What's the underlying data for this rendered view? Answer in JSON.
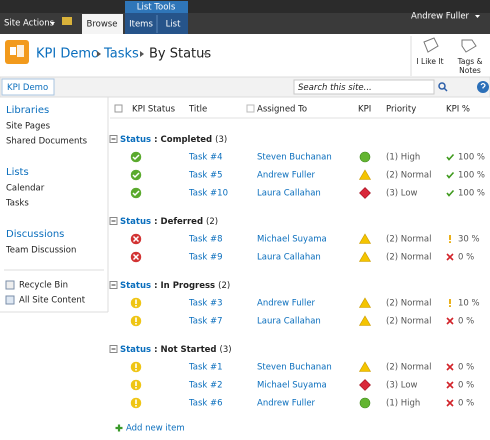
{
  "ribbon": {
    "site_actions": "Site Actions",
    "list_tools": "List Tools",
    "browse": "Browse",
    "items": "Items",
    "list": "List",
    "user": "Andrew Fuller"
  },
  "header": {
    "site": "KPI Demo",
    "list": "Tasks",
    "view": "By Status",
    "like": "I Like It",
    "tags_notes": [
      "Tags &",
      "Notes"
    ]
  },
  "nav_bar": {
    "breadcrumb": "KPI Demo",
    "search_placeholder": "Search this site..."
  },
  "sidebar": {
    "sections": [
      {
        "title": "Libraries",
        "items": [
          "Site Pages",
          "Shared Documents"
        ]
      },
      {
        "title": "Lists",
        "items": [
          "Calendar",
          "Tasks"
        ]
      },
      {
        "title": "Discussions",
        "items": [
          "Team Discussion"
        ]
      }
    ],
    "footer": [
      "Recycle Bin",
      "All Site Content"
    ]
  },
  "table": {
    "columns": [
      "KPI Status",
      "Title",
      "Assigned To",
      "KPI",
      "Priority",
      "KPI %"
    ],
    "group_label": "Status",
    "group_separator": ":",
    "groups": [
      {
        "name": "Completed",
        "count": "(3)",
        "status_icon": "check",
        "rows": [
          {
            "title": "Task #4",
            "assigned": "Steven Buchanan",
            "kpi": "circle",
            "priority": "(1) High",
            "pct_icon": "check",
            "pct": "100 %"
          },
          {
            "title": "Task #5",
            "assigned": "Andrew Fuller",
            "kpi": "triangle",
            "priority": "(2) Normal",
            "pct_icon": "check",
            "pct": "100 %"
          },
          {
            "title": "Task #10",
            "assigned": "Laura Callahan",
            "kpi": "diamond",
            "priority": "(3) Low",
            "pct_icon": "check",
            "pct": "100 %"
          }
        ]
      },
      {
        "name": "Deferred",
        "count": "(2)",
        "status_icon": "x",
        "rows": [
          {
            "title": "Task #8",
            "assigned": "Michael Suyama",
            "kpi": "triangle",
            "priority": "(2) Normal",
            "pct_icon": "warn",
            "pct": "30 %"
          },
          {
            "title": "Task #9",
            "assigned": "Laura Callahan",
            "kpi": "triangle",
            "priority": "(2) Normal",
            "pct_icon": "x",
            "pct": "0 %"
          }
        ]
      },
      {
        "name": "In Progress",
        "count": "(2)",
        "status_icon": "warn",
        "rows": [
          {
            "title": "Task #3",
            "assigned": "Andrew Fuller",
            "kpi": "triangle",
            "priority": "(2) Normal",
            "pct_icon": "warn",
            "pct": "10 %"
          },
          {
            "title": "Task #7",
            "assigned": "Laura Callahan",
            "kpi": "triangle",
            "priority": "(2) Normal",
            "pct_icon": "x",
            "pct": "0 %"
          }
        ]
      },
      {
        "name": "Not Started",
        "count": "(3)",
        "status_icon": "warn",
        "rows": [
          {
            "title": "Task #1",
            "assigned": "Steven Buchanan",
            "kpi": "triangle",
            "priority": "(2) Normal",
            "pct_icon": "x",
            "pct": "0 %"
          },
          {
            "title": "Task #2",
            "assigned": "Michael Suyama",
            "kpi": "diamond",
            "priority": "(3) Low",
            "pct_icon": "x",
            "pct": "0 %"
          },
          {
            "title": "Task #6",
            "assigned": "Andrew Fuller",
            "kpi": "circle",
            "priority": "(1) High",
            "pct_icon": "x",
            "pct": "0 %"
          }
        ]
      }
    ],
    "add_new": "Add new item"
  }
}
